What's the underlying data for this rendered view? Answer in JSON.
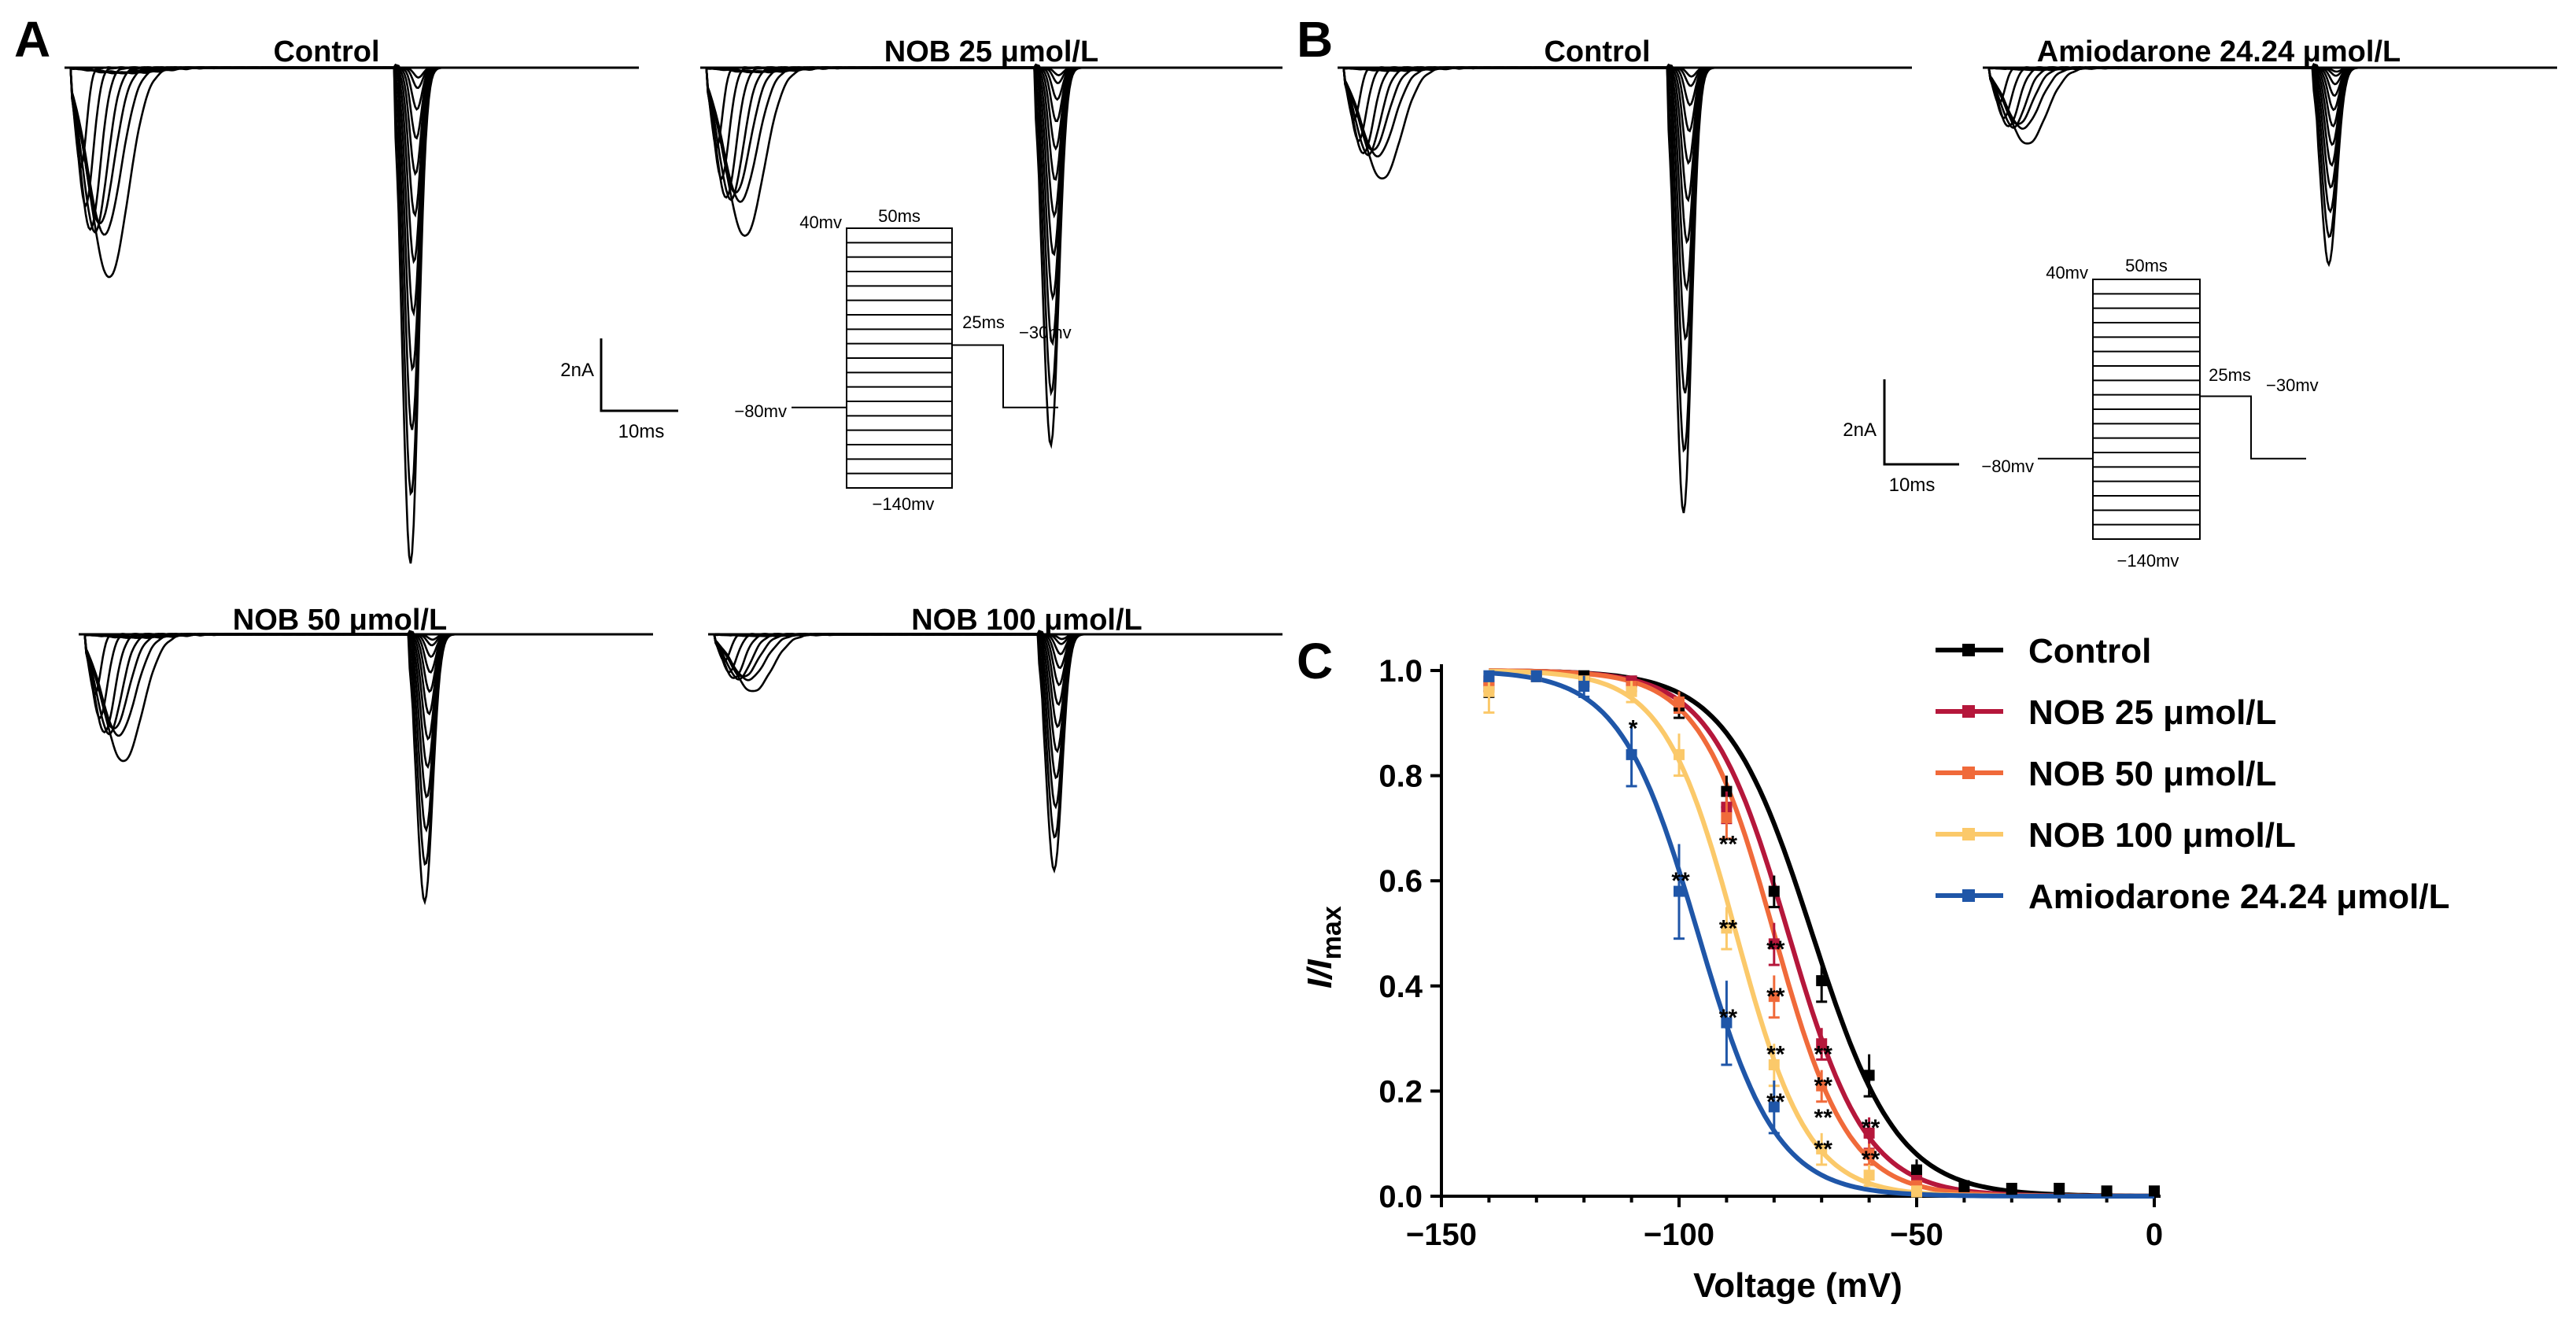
{
  "panels": {
    "A": {
      "letter": "A",
      "traces": [
        {
          "title": "Control"
        },
        {
          "title": "NOB 25 μmol/L"
        },
        {
          "title": "NOB 50 μmol/L"
        },
        {
          "title": "NOB 100 μmol/L"
        }
      ],
      "scale_bar": {
        "current": "2nA",
        "time": "10ms"
      },
      "protocol": {
        "hold": "−80mv",
        "top": "40mv",
        "bottom": "−140mv",
        "step_duration": "50ms",
        "test_duration": "25ms",
        "test": "−30mv"
      }
    },
    "B": {
      "letter": "B",
      "traces": [
        {
          "title": "Control"
        },
        {
          "title": "Amiodarone 24.24 μmol/L"
        }
      ],
      "scale_bar": {
        "current": "2nA",
        "time": "10ms"
      },
      "protocol": {
        "hold": "−80mv",
        "top": "40mv",
        "bottom": "−140mv",
        "step_duration": "50ms",
        "test_duration": "25ms",
        "test": "−30mv"
      }
    },
    "C": {
      "letter": "C"
    }
  },
  "chart_data": {
    "type": "line",
    "title": "",
    "xlabel": "Voltage (mV)",
    "ylabel_main": "I/I",
    "ylabel_sub": "max",
    "xlim": [
      -150,
      0
    ],
    "ylim": [
      0,
      1.0
    ],
    "xticks": [
      -150,
      -100,
      -50,
      0
    ],
    "xtick_labels": [
      "−150",
      "−100",
      "−50",
      "0"
    ],
    "yticks": [
      0,
      0.2,
      0.4,
      0.6,
      0.8,
      1.0
    ],
    "ytick_labels": [
      "0.0",
      "0.2",
      "0.4",
      "0.6",
      "0.8",
      "1.0"
    ],
    "legend_position": "top-right",
    "significance_marks": [
      {
        "x": -110,
        "y": 0.89,
        "label": "*"
      },
      {
        "x": -100,
        "y": 0.6,
        "label": "**"
      },
      {
        "x": -90,
        "y": 0.67,
        "label": "**"
      },
      {
        "x": -90,
        "y": 0.51,
        "label": "**"
      },
      {
        "x": -90,
        "y": 0.34,
        "label": "**"
      },
      {
        "x": -80,
        "y": 0.47,
        "label": "**"
      },
      {
        "x": -80,
        "y": 0.38,
        "label": "**"
      },
      {
        "x": -80,
        "y": 0.27,
        "label": "**"
      },
      {
        "x": -80,
        "y": 0.18,
        "label": "**"
      },
      {
        "x": -70,
        "y": 0.27,
        "label": "**"
      },
      {
        "x": -70,
        "y": 0.21,
        "label": "**"
      },
      {
        "x": -70,
        "y": 0.15,
        "label": "**"
      },
      {
        "x": -70,
        "y": 0.09,
        "label": "**"
      },
      {
        "x": -60,
        "y": 0.13,
        "label": "**"
      },
      {
        "x": -60,
        "y": 0.07,
        "label": "**"
      }
    ],
    "series": [
      {
        "name": "Control",
        "color": "#000000",
        "v_half": -72,
        "slope": 9.0,
        "x": [
          -140,
          -130,
          -120,
          -110,
          -100,
          -90,
          -80,
          -70,
          -60,
          -50,
          -40,
          -30,
          -20,
          -10,
          0
        ],
        "y": [
          0.97,
          0.99,
          0.99,
          0.98,
          0.93,
          0.77,
          0.58,
          0.41,
          0.23,
          0.05,
          0.02,
          0.015,
          0.015,
          0.01,
          0.01
        ],
        "err": [
          0.02,
          0.01,
          0.01,
          0.01,
          0.02,
          0.03,
          0.03,
          0.04,
          0.04,
          0.02,
          0.01,
          0.01,
          0.01,
          0.005,
          0.005
        ]
      },
      {
        "name": "NOB 25 μmol/L",
        "color": "#b5173b",
        "v_half": -77,
        "slope": 8.2,
        "x": [
          -140,
          -130,
          -120,
          -110,
          -100,
          -90,
          -80,
          -70,
          -60,
          -50
        ],
        "y": [
          0.98,
          0.99,
          0.98,
          0.98,
          0.94,
          0.74,
          0.48,
          0.29,
          0.12,
          0.03
        ],
        "err": [
          0.02,
          0.01,
          0.01,
          0.01,
          0.02,
          0.03,
          0.04,
          0.03,
          0.03,
          0.01
        ]
      },
      {
        "name": "NOB 50 μmol/L",
        "color": "#f06a3a",
        "v_half": -80,
        "slope": 7.8,
        "x": [
          -140,
          -130,
          -120,
          -110,
          -100,
          -90,
          -80,
          -70,
          -60,
          -50
        ],
        "y": [
          0.98,
          0.99,
          0.98,
          0.97,
          0.94,
          0.72,
          0.38,
          0.21,
          0.08,
          0.02
        ],
        "err": [
          0.02,
          0.01,
          0.01,
          0.01,
          0.02,
          0.04,
          0.04,
          0.03,
          0.02,
          0.01
        ]
      },
      {
        "name": "NOB 100 μmol/L",
        "color": "#fbc96a",
        "v_half": -88,
        "slope": 7.6,
        "x": [
          -140,
          -130,
          -120,
          -110,
          -100,
          -90,
          -80,
          -70,
          -60,
          -50
        ],
        "y": [
          0.96,
          0.99,
          0.98,
          0.96,
          0.84,
          0.51,
          0.25,
          0.09,
          0.04,
          0.01
        ],
        "err": [
          0.04,
          0.01,
          0.01,
          0.02,
          0.04,
          0.04,
          0.04,
          0.03,
          0.02,
          0.01
        ]
      },
      {
        "name": "Amiodarone 24.24 μmol/L",
        "color": "#1f56a8",
        "v_half": -96,
        "slope": 8.2,
        "x": [
          -140,
          -130,
          -120,
          -110,
          -100,
          -90,
          -80
        ],
        "y": [
          0.99,
          0.99,
          0.97,
          0.84,
          0.58,
          0.33,
          0.17
        ],
        "err": [
          0.01,
          0.01,
          0.02,
          0.06,
          0.09,
          0.08,
          0.05
        ]
      }
    ]
  }
}
